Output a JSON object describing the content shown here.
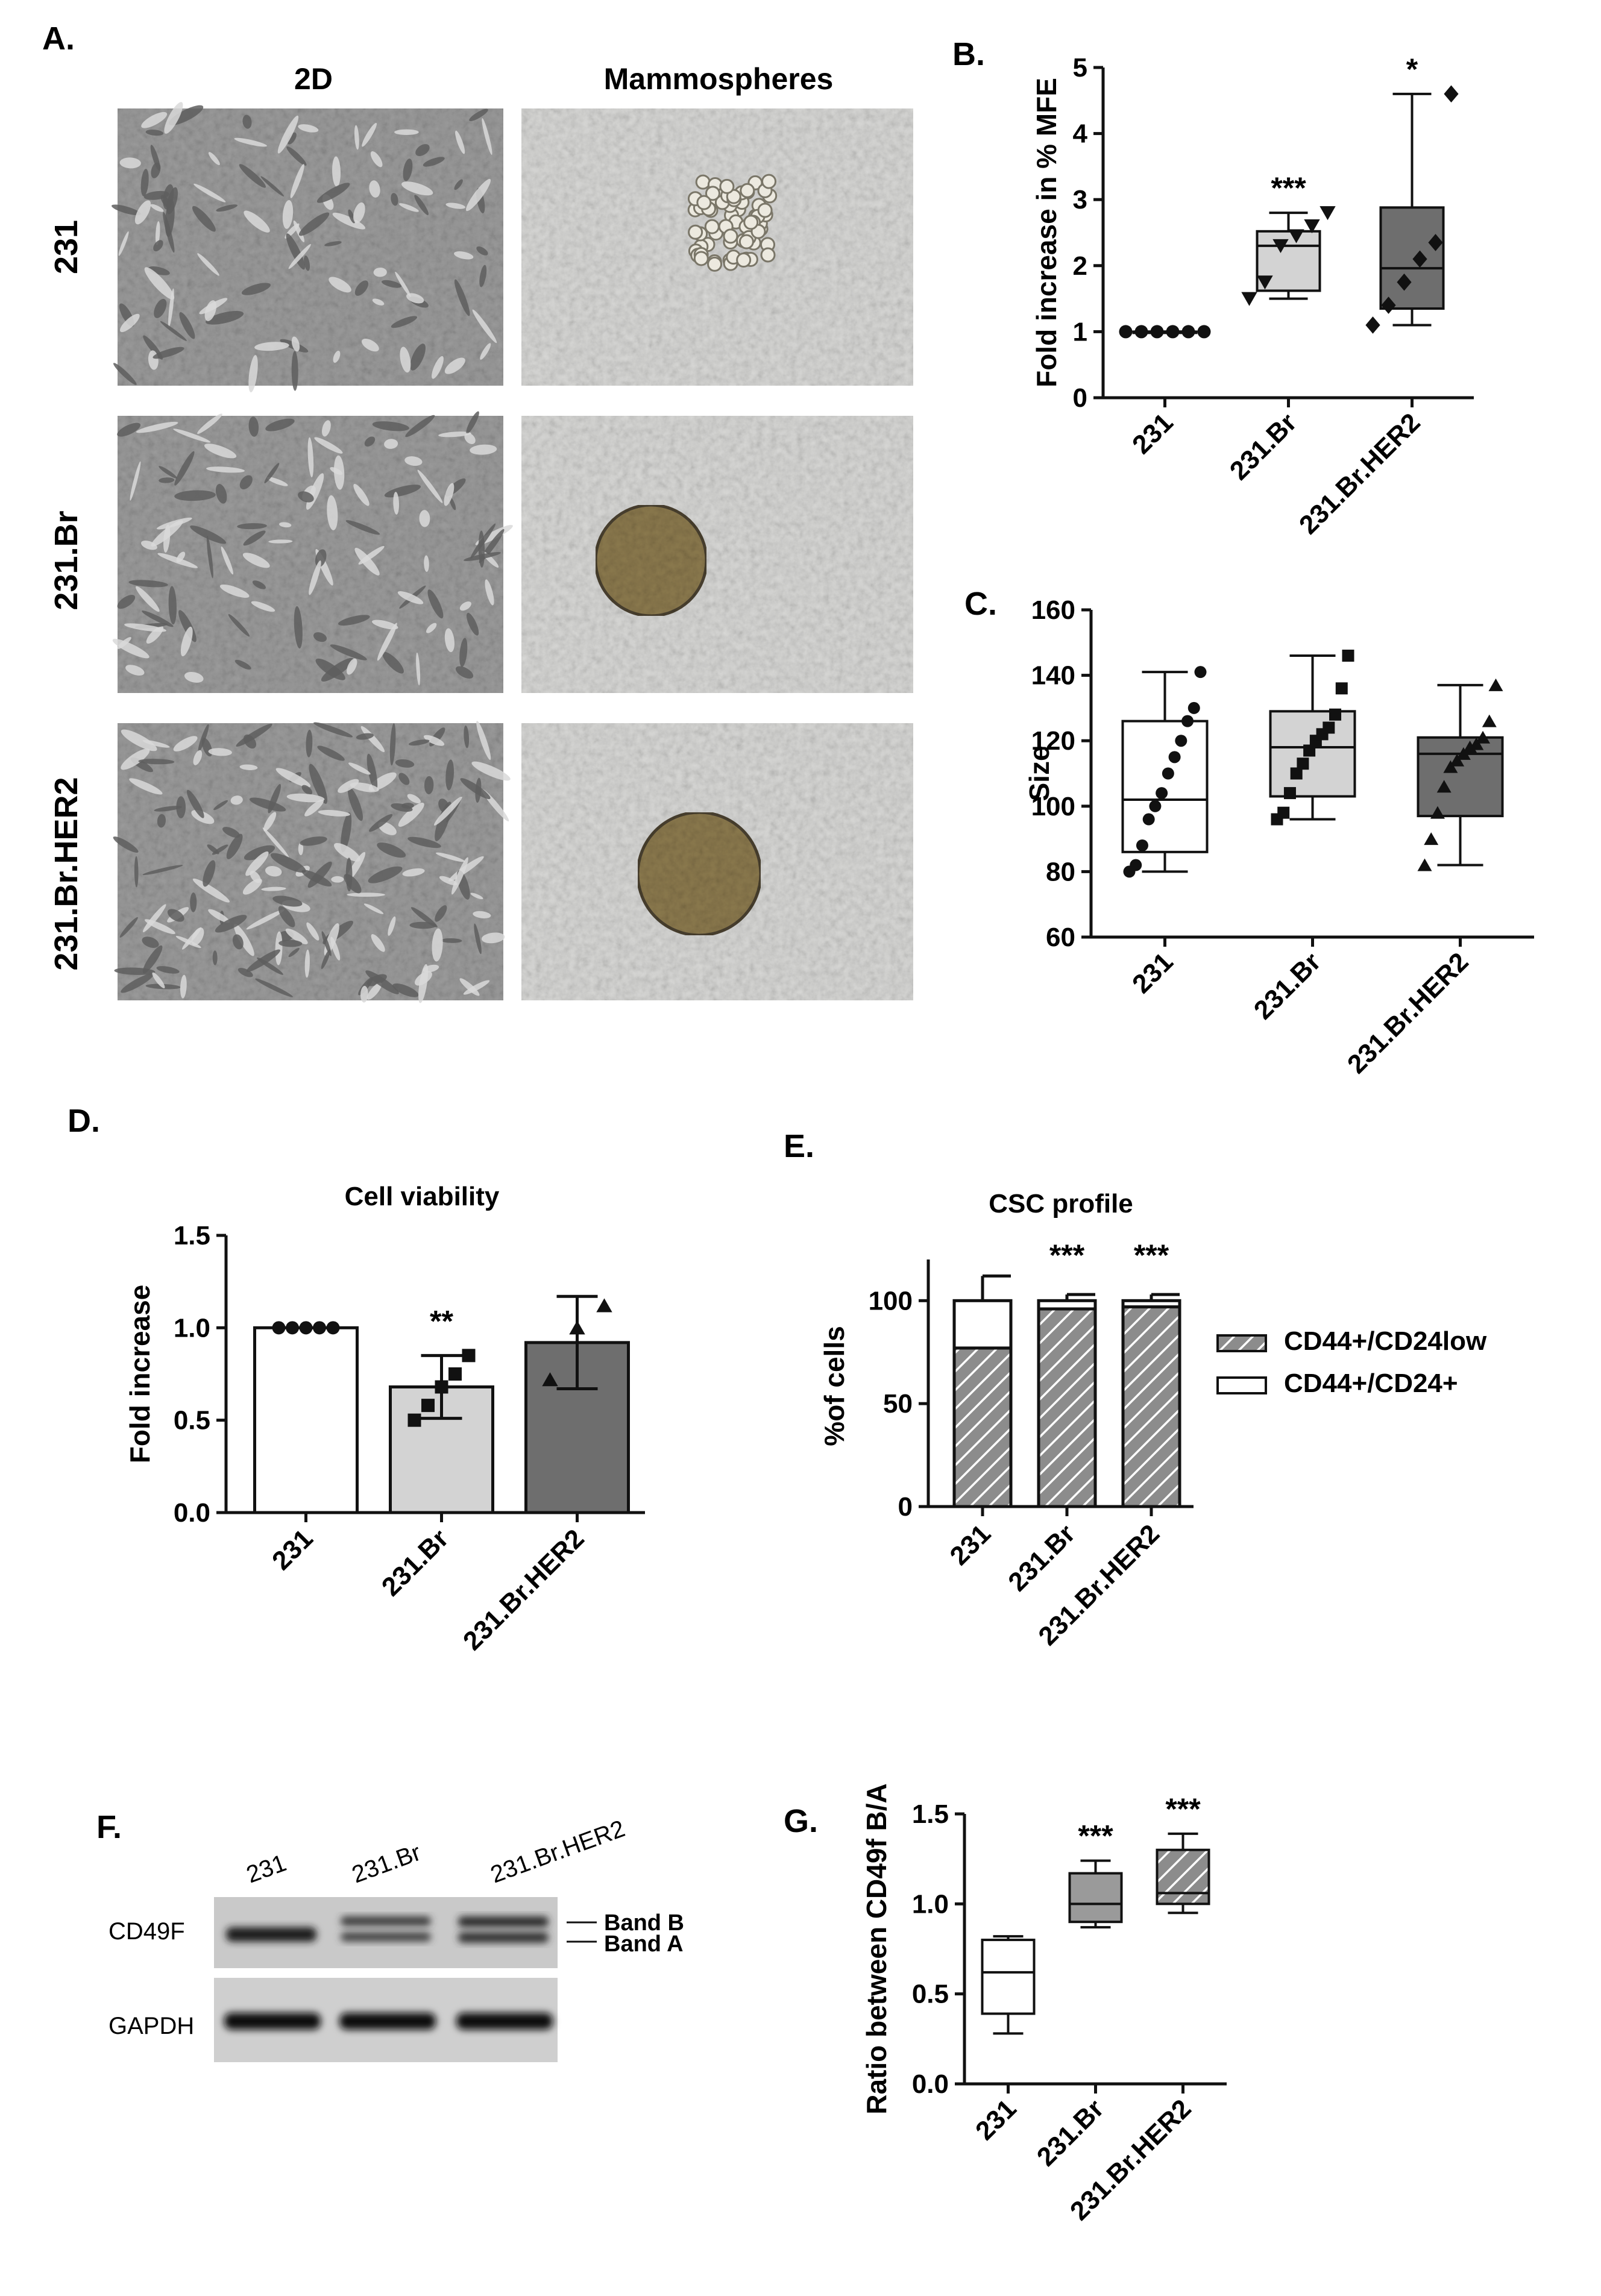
{
  "colors": {
    "white": "#ffffff",
    "light_gray": "#d3d3d3",
    "medium_gray": "#9a9a9a",
    "dark_gray": "#6e6e6e",
    "hatch_gray": "#8c8c8c",
    "cell_2d_bg": "#9c9c9c",
    "mammosphere_bg": "#d8d8d6",
    "sphere_brown": "#8c7a4e"
  },
  "panels": {
    "A": {
      "letter": "A.",
      "col_labels": [
        "2D",
        "Mammospheres"
      ],
      "row_labels": [
        "231",
        "231.Br",
        "231.Br.HER2"
      ]
    },
    "B": {
      "letter": "B."
    },
    "C": {
      "letter": "C."
    },
    "D": {
      "letter": "D."
    },
    "E": {
      "letter": "E."
    },
    "F": {
      "letter": "F.",
      "lanes": [
        "231",
        "231.Br",
        "231.Br.HER2"
      ],
      "rows": [
        "CD49F",
        "GAPDH"
      ],
      "bands": [
        "Band B",
        "Band A"
      ]
    },
    "G": {
      "letter": "G."
    }
  },
  "chart_data": [
    {
      "id": "B",
      "type": "box",
      "title": "",
      "ylabel": "Fold increase in % MFE",
      "categories": [
        "231",
        "231.Br",
        "231.Br.HER2"
      ],
      "ylim": [
        0,
        5
      ],
      "yticks": [
        0,
        1,
        2,
        3,
        4,
        5
      ],
      "boxes": [
        {
          "category": "231",
          "min": 1,
          "q1": 1,
          "median": 1,
          "q3": 1,
          "max": 1,
          "points": [
            1,
            1,
            1,
            1,
            1,
            1
          ],
          "marker": "circle",
          "fill": "#ffffff",
          "annotation": ""
        },
        {
          "category": "231.Br",
          "min": 1.5,
          "q1": 1.62,
          "median": 2.3,
          "q3": 2.52,
          "max": 2.8,
          "points": [
            1.5,
            1.75,
            2.3,
            2.45,
            2.6,
            2.8
          ],
          "marker": "triangle-down",
          "fill": "#d3d3d3",
          "annotation": "***"
        },
        {
          "category": "231.Br.HER2",
          "min": 1.1,
          "q1": 1.35,
          "median": 1.96,
          "q3": 2.88,
          "max": 4.6,
          "points": [
            1.1,
            1.4,
            1.75,
            2.1,
            2.35,
            4.6
          ],
          "marker": "diamond",
          "fill": "#6e6e6e",
          "annotation": "*"
        }
      ]
    },
    {
      "id": "C",
      "type": "box",
      "title": "",
      "ylabel": "Size",
      "categories": [
        "231",
        "231.Br",
        "231.Br.HER2"
      ],
      "ylim": [
        60,
        160
      ],
      "yticks": [
        60,
        80,
        100,
        120,
        140,
        160
      ],
      "boxes": [
        {
          "category": "231",
          "min": 80,
          "q1": 86,
          "median": 102,
          "q3": 126,
          "max": 141,
          "points": [
            80,
            82,
            88,
            96,
            100,
            104,
            110,
            115,
            120,
            126,
            130,
            141
          ],
          "marker": "circle",
          "fill": "#ffffff",
          "annotation": ""
        },
        {
          "category": "231.Br",
          "min": 96,
          "q1": 103,
          "median": 118,
          "q3": 129,
          "max": 146,
          "points": [
            96,
            98,
            104,
            110,
            113,
            117,
            120,
            122,
            124,
            128,
            136,
            146
          ],
          "marker": "square",
          "fill": "#d3d3d3",
          "annotation": ""
        },
        {
          "category": "231.Br.HER2",
          "min": 82,
          "q1": 97,
          "median": 116,
          "q3": 121,
          "max": 137,
          "points": [
            82,
            90,
            98,
            106,
            112,
            114,
            116,
            118,
            119,
            121,
            126,
            137
          ],
          "marker": "triangle-up",
          "fill": "#6e6e6e",
          "annotation": ""
        }
      ]
    },
    {
      "id": "D",
      "type": "bar",
      "title": "Cell viability",
      "ylabel": "Fold increase",
      "categories": [
        "231",
        "231.Br",
        "231.Br.HER2"
      ],
      "ylim": [
        0,
        1.5
      ],
      "yticks": [
        "0.0",
        "0.5",
        "1.0",
        "1.5"
      ],
      "values": [
        1.0,
        0.68,
        0.92
      ],
      "errors": [
        0,
        0.17,
        0.25
      ],
      "fills": [
        "#ffffff",
        "#d3d3d3",
        "#6e6e6e"
      ],
      "points": [
        [
          1,
          1,
          1,
          1,
          1
        ],
        [
          0.5,
          0.58,
          0.68,
          0.75,
          0.85
        ],
        [
          0.72,
          1.0,
          1.12
        ]
      ],
      "markers": [
        "circle",
        "square",
        "triangle-up"
      ],
      "annotations": [
        "",
        "**",
        ""
      ]
    },
    {
      "id": "E",
      "type": "bar",
      "stacked": true,
      "title": "CSC profile",
      "ylabel": "%of cells",
      "categories": [
        "231",
        "231.Br",
        "231.Br.HER2"
      ],
      "ylim": [
        0,
        120
      ],
      "yticks": [
        0,
        50,
        100
      ],
      "series": [
        {
          "name": "CD44+/CD24low",
          "values": [
            77,
            96,
            97
          ],
          "errors": [
            10,
            2,
            2
          ],
          "pattern": "hatched"
        },
        {
          "name": "CD44+/CD24+",
          "values": [
            23,
            4,
            3
          ],
          "errors": [
            12,
            3,
            3
          ],
          "pattern": "white"
        }
      ],
      "annotations": [
        "",
        "***",
        "***"
      ],
      "legend": "right"
    },
    {
      "id": "G",
      "type": "box",
      "title": "",
      "ylabel": "Ratio between CD49f B/A",
      "categories": [
        "231",
        "231.Br",
        "231.Br.HER2"
      ],
      "ylim": [
        0,
        1.5
      ],
      "yticks": [
        "0.0",
        "0.5",
        "1.0",
        "1.5"
      ],
      "boxes": [
        {
          "category": "231",
          "min": 0.28,
          "q1": 0.39,
          "median": 0.62,
          "q3": 0.8,
          "max": 0.82,
          "fill": "#ffffff",
          "pattern": "",
          "annotation": ""
        },
        {
          "category": "231.Br",
          "min": 0.87,
          "q1": 0.9,
          "median": 1.0,
          "q3": 1.17,
          "max": 1.24,
          "fill": "#9a9a9a",
          "pattern": "",
          "annotation": "***"
        },
        {
          "category": "231.Br.HER2",
          "min": 0.95,
          "q1": 1.0,
          "median": 1.06,
          "q3": 1.3,
          "max": 1.39,
          "fill": "#8c8c8c",
          "pattern": "hatched",
          "annotation": "***"
        }
      ]
    }
  ]
}
